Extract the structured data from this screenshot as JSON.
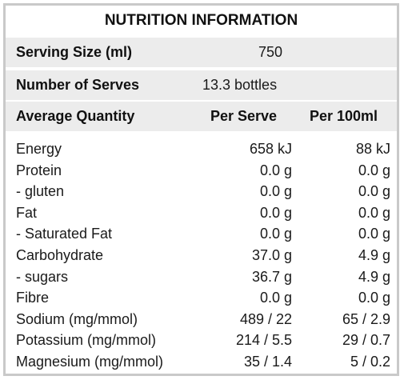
{
  "title": "NUTRITION INFORMATION",
  "serving_size": {
    "label": "Serving Size (ml)",
    "value": "750"
  },
  "number_of_serves": {
    "label": "Number of Serves",
    "value": "13.3 bottles"
  },
  "header": {
    "label": "Average Quantity",
    "per_serve": "Per Serve",
    "per_100ml": "Per 100ml"
  },
  "rows": [
    {
      "name": "Energy",
      "per_serve": "658 kJ",
      "per_100ml": "88 kJ"
    },
    {
      "name": "Protein",
      "per_serve": "0.0 g",
      "per_100ml": "0.0 g"
    },
    {
      "name": "- gluten",
      "per_serve": "0.0 g",
      "per_100ml": "0.0 g"
    },
    {
      "name": "Fat",
      "per_serve": "0.0 g",
      "per_100ml": "0.0 g"
    },
    {
      "name": "- Saturated Fat",
      "per_serve": "0.0 g",
      "per_100ml": "0.0 g"
    },
    {
      "name": "Carbohydrate",
      "per_serve": "37.0 g",
      "per_100ml": "4.9 g"
    },
    {
      "name": "- sugars",
      "per_serve": "36.7 g",
      "per_100ml": "4.9 g"
    },
    {
      "name": "Fibre",
      "per_serve": "0.0 g",
      "per_100ml": "0.0 g"
    },
    {
      "name": "Sodium (mg/mmol)",
      "per_serve": "489 / 22",
      "per_100ml": "65 / 2.9"
    },
    {
      "name": "Potassium (mg/mmol)",
      "per_serve": "214 / 5.5",
      "per_100ml": "29 / 0.7"
    },
    {
      "name": "Magnesium (mg/mmol)",
      "per_serve": "35 / 1.4",
      "per_100ml": "5 / 0.2"
    }
  ]
}
